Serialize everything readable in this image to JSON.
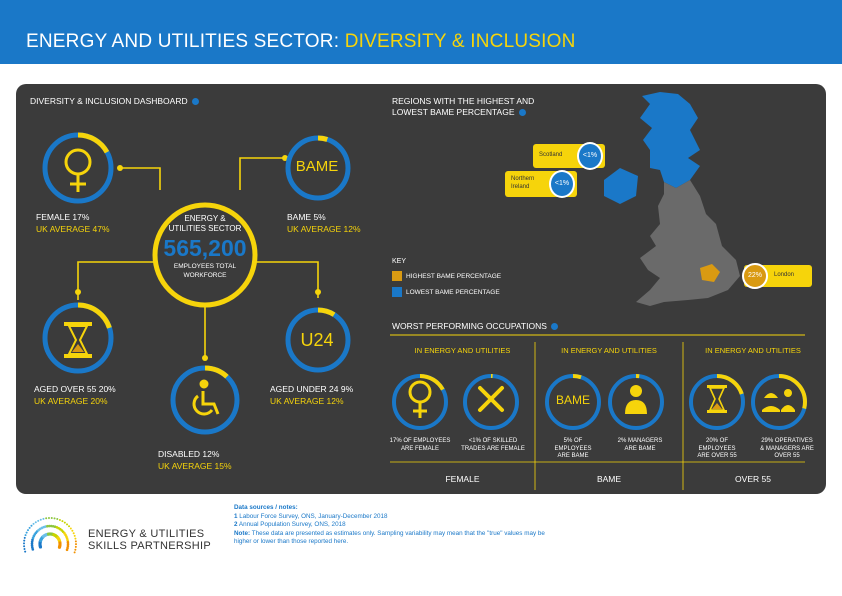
{
  "header": {
    "title_main": "ENERGY AND UTILITIES SECTOR:",
    "title_sub": "DIVERSITY & INCLUSION"
  },
  "dashboard": {
    "title": "DIVERSITY & INCLUSION DASHBOARD",
    "center": {
      "line1": "ENERGY &",
      "line2": "UTILITIES SECTOR",
      "value": "565,200",
      "line3": "EMPLOYEES TOTAL",
      "line4": "WORKFORCE"
    },
    "female": {
      "label": "FEMALE 17%",
      "avg": "UK AVERAGE 47%",
      "fill": 0.17
    },
    "bame": {
      "icon_text": "BAME",
      "label": "BAME 5%",
      "avg": "UK AVERAGE 12%",
      "fill": 0.05
    },
    "over55": {
      "label": "AGED OVER 55 20%",
      "avg": "UK AVERAGE 20%",
      "fill": 0.2
    },
    "under24": {
      "icon_text": "U24",
      "label": "AGED UNDER 24 9%",
      "avg": "UK AVERAGE 12%",
      "fill": 0.09
    },
    "disabled": {
      "label": "DISABLED 12%",
      "avg": "UK AVERAGE 15%",
      "fill": 0.12
    }
  },
  "regions": {
    "title_line1": "REGIONS WITH THE HIGHEST AND",
    "title_line2": "LOWEST BAME PERCENTAGE",
    "scotland": {
      "name": "Scotland",
      "value": "<1%"
    },
    "ni": {
      "name_line1": "Northern",
      "name_line2": "Ireland",
      "value": "<1%"
    },
    "london": {
      "name": "London",
      "value": "22%"
    },
    "key": {
      "title": "KEY",
      "high": "HIGHEST BAME PERCENTAGE",
      "low": "LOWEST BAME PERCENTAGE"
    },
    "colors": {
      "high": "#d99a12",
      "low": "#1a78c8",
      "map": "#6a6a6a"
    }
  },
  "occupations": {
    "title": "WORST PERFORMING OCCUPATIONS",
    "groups": [
      {
        "header": "IN ENERGY AND UTILITIES",
        "footer": "FEMALE",
        "items": [
          {
            "caption1": "17% OF EMPLOYEES",
            "caption2": "ARE FEMALE",
            "fill": 0.17
          },
          {
            "caption1": "<1% OF SKILLED",
            "caption2": "TRADES ARE FEMALE",
            "fill": 0.01
          }
        ]
      },
      {
        "header": "IN ENERGY AND UTILITIES",
        "footer": "BAME",
        "items": [
          {
            "caption1": "5% OF",
            "caption2": "EMPLOYEES",
            "caption3": "ARE BAME",
            "fill": 0.05,
            "icon_text": "BAME"
          },
          {
            "caption1": "2% MANAGERS",
            "caption2": "ARE BAME",
            "fill": 0.02
          }
        ]
      },
      {
        "header": "IN ENERGY AND UTILITIES",
        "footer": "OVER 55",
        "items": [
          {
            "caption1": "20% OF",
            "caption2": "EMPLOYEES",
            "caption3": "ARE OVER 55",
            "fill": 0.2
          },
          {
            "caption1": "29% OPERATIVES",
            "caption2": "& MANAGERS ARE",
            "caption3": "OVER 55",
            "fill": 0.29
          }
        ]
      }
    ]
  },
  "footer": {
    "logo_line1": "ENERGY & UTILITIES",
    "logo_line2": "SKILLS PARTNERSHIP",
    "notes_title": "Data sources / notes:",
    "note1_num": "1",
    "note1": "Labour Force Survey, ONS, January-December 2018",
    "note2_num": "2",
    "note2": "Annual Population Survey, ONS, 2018",
    "note3_label": "Note:",
    "note3": "These data are presented as estimates only. Sampling variability may mean that the \"true\" values may be higher or lower than those reported here."
  }
}
